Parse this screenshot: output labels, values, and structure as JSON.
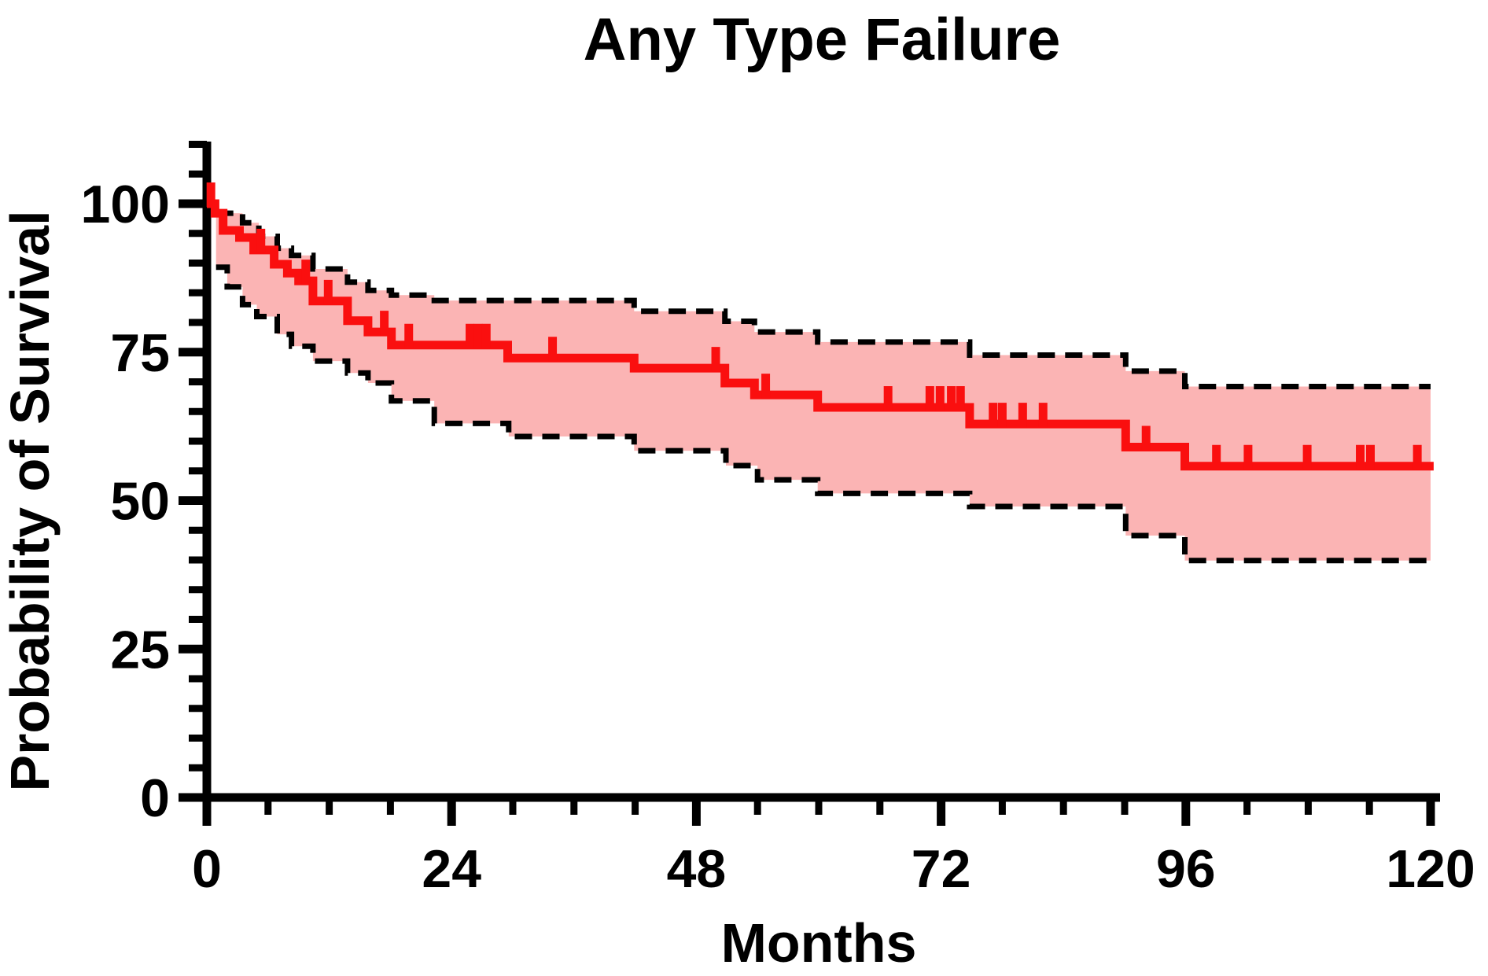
{
  "title": "Any Type Failure",
  "chart_data": {
    "type": "line",
    "subtype": "kaplan-meier-step",
    "title": "Any Type Failure",
    "xlabel": "Months",
    "ylabel": "Probability of Survival",
    "xlim": [
      0,
      120
    ],
    "ylim": [
      0,
      100
    ],
    "xticks": [
      0,
      24,
      48,
      72,
      96,
      120
    ],
    "yticks": [
      0,
      25,
      50,
      75,
      100
    ],
    "x_minor_step": 6,
    "y_minor_step": 5,
    "y_axis_top_value": 110,
    "grid": false,
    "legend": "none",
    "colors": {
      "curve": "#fa0f0f",
      "band": "#fbb4b4",
      "ci_line": "#000000",
      "axis": "#000000",
      "text": "#000000",
      "background": "#ffffff"
    },
    "series": [
      {
        "name": "survival",
        "steps": [
          [
            0,
            100
          ],
          [
            0.8,
            98.4
          ],
          [
            1.6,
            95.5
          ],
          [
            3.2,
            94.3
          ],
          [
            4.6,
            92.2
          ],
          [
            6.6,
            89.8
          ],
          [
            7.9,
            88.3
          ],
          [
            9.0,
            87.0
          ],
          [
            10.4,
            83.6
          ],
          [
            13.8,
            80.3
          ],
          [
            15.8,
            78.4
          ],
          [
            18.1,
            76.2
          ],
          [
            29.5,
            74.0
          ],
          [
            41.9,
            72.3
          ],
          [
            50.8,
            69.8
          ],
          [
            53.7,
            67.8
          ],
          [
            59.9,
            65.7
          ],
          [
            74.8,
            62.9
          ],
          [
            90.1,
            59.0
          ],
          [
            95.9,
            55.8
          ]
        ],
        "end": 120.3
      },
      {
        "name": "upper_ci",
        "steps": [
          [
            0.9,
            98.4
          ],
          [
            3.5,
            96.8
          ],
          [
            5.1,
            94.5
          ],
          [
            6.9,
            92.5
          ],
          [
            8.3,
            91.3
          ],
          [
            10.4,
            89.0
          ],
          [
            13.8,
            86.8
          ],
          [
            15.8,
            85.4
          ],
          [
            18.1,
            84.6
          ],
          [
            22.3,
            83.7
          ],
          [
            41.9,
            81.9
          ],
          [
            50.8,
            80.2
          ],
          [
            53.7,
            78.4
          ],
          [
            59.9,
            76.7
          ],
          [
            74.8,
            74.5
          ],
          [
            90.1,
            71.8
          ],
          [
            95.9,
            69.2
          ]
        ],
        "end": 120
      },
      {
        "name": "lower_ci",
        "steps": [
          [
            0.9,
            89.3
          ],
          [
            2.0,
            86.0
          ],
          [
            3.5,
            83.0
          ],
          [
            4.9,
            81.0
          ],
          [
            6.9,
            78.0
          ],
          [
            8.3,
            76.0
          ],
          [
            10.4,
            73.5
          ],
          [
            13.8,
            71.5
          ],
          [
            15.8,
            69.8
          ],
          [
            18.1,
            66.8
          ],
          [
            22.3,
            63.0
          ],
          [
            29.6,
            60.8
          ],
          [
            41.9,
            58.4
          ],
          [
            50.9,
            55.9
          ],
          [
            54.0,
            53.5
          ],
          [
            59.9,
            51.2
          ],
          [
            74.8,
            49.0
          ],
          [
            90.1,
            44.1
          ],
          [
            95.9,
            39.9
          ]
        ],
        "end": 120
      }
    ],
    "censor_marks": [
      0.4,
      5.3,
      9.7,
      11.9,
      17.4,
      19.8,
      25.8,
      26.6,
      27.4,
      33.9,
      49.9,
      54.8,
      66.8,
      70.9,
      71.9,
      73.0,
      73.9,
      77.1,
      78.0,
      80.0,
      82.0,
      92.1,
      99.0,
      102.1,
      107.9,
      113.1,
      114.1,
      118.7
    ]
  }
}
